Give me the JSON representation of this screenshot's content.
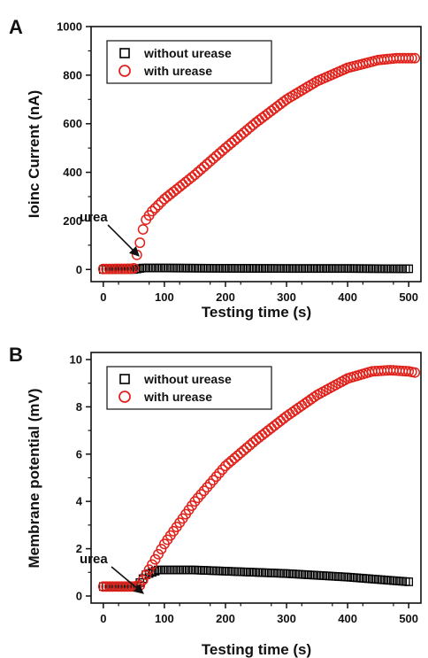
{
  "chart_data": [
    {
      "panel": "A",
      "type": "scatter",
      "xlabel": "Testing time (s)",
      "ylabel": "Ioinc Current (nA)",
      "xlim": [
        -20,
        520
      ],
      "ylim": [
        -50,
        1000
      ],
      "xticks": [
        0,
        100,
        200,
        300,
        400,
        500
      ],
      "yticks": [
        0,
        200,
        400,
        600,
        800,
        1000
      ],
      "legend_position": "top-left",
      "annotation": {
        "text": "urea",
        "x": 45,
        "y": 20
      },
      "series": [
        {
          "name": "without urease",
          "marker": "square",
          "color": "#000000",
          "x_start": 0,
          "x_end": 500,
          "x_step": 5,
          "points": [
            [
              0,
              0
            ],
            [
              50,
              0
            ],
            [
              65,
              6
            ],
            [
              100,
              6
            ],
            [
              200,
              5
            ],
            [
              300,
              4
            ],
            [
              400,
              4
            ],
            [
              500,
              3
            ]
          ]
        },
        {
          "name": "with urease",
          "marker": "circle",
          "color": "#e0221b",
          "x_start": 0,
          "x_end": 510,
          "x_step": 5,
          "points": [
            [
              0,
              2
            ],
            [
              45,
              3
            ],
            [
              50,
              5
            ],
            [
              55,
              60
            ],
            [
              60,
              110
            ],
            [
              65,
              165
            ],
            [
              70,
              205
            ],
            [
              80,
              240
            ],
            [
              100,
              290
            ],
            [
              150,
              390
            ],
            [
              200,
              500
            ],
            [
              250,
              605
            ],
            [
              300,
              700
            ],
            [
              350,
              775
            ],
            [
              400,
              830
            ],
            [
              450,
              862
            ],
            [
              480,
              870
            ],
            [
              510,
              870
            ]
          ]
        }
      ]
    },
    {
      "panel": "B",
      "type": "scatter",
      "xlabel": "Testing time (s)",
      "ylabel": "Membrane potential (mV)",
      "xlim": [
        -20,
        520
      ],
      "ylim": [
        -0.3,
        10.3
      ],
      "xticks": [
        0,
        100,
        200,
        300,
        400,
        500
      ],
      "yticks": [
        0,
        2,
        4,
        6,
        8,
        10
      ],
      "legend_position": "top-left",
      "annotation": {
        "text": "urea",
        "x": 50,
        "y": 0.45
      },
      "series": [
        {
          "name": "without urease",
          "marker": "square",
          "color": "#000000",
          "x_start": 0,
          "x_end": 500,
          "x_step": 5,
          "points": [
            [
              0,
              0.4
            ],
            [
              55,
              0.4
            ],
            [
              70,
              0.9
            ],
            [
              90,
              1.1
            ],
            [
              150,
              1.1
            ],
            [
              200,
              1.05
            ],
            [
              300,
              0.95
            ],
            [
              400,
              0.8
            ],
            [
              500,
              0.6
            ]
          ]
        },
        {
          "name": "with urease",
          "marker": "circle",
          "color": "#e0221b",
          "x_start": 0,
          "x_end": 510,
          "x_step": 5,
          "points": [
            [
              0,
              0.4
            ],
            [
              50,
              0.4
            ],
            [
              60,
              0.45
            ],
            [
              70,
              0.9
            ],
            [
              100,
              2.2
            ],
            [
              150,
              4.0
            ],
            [
              200,
              5.5
            ],
            [
              250,
              6.6
            ],
            [
              300,
              7.6
            ],
            [
              350,
              8.5
            ],
            [
              400,
              9.2
            ],
            [
              440,
              9.5
            ],
            [
              470,
              9.55
            ],
            [
              500,
              9.5
            ],
            [
              510,
              9.45
            ]
          ]
        }
      ]
    }
  ]
}
